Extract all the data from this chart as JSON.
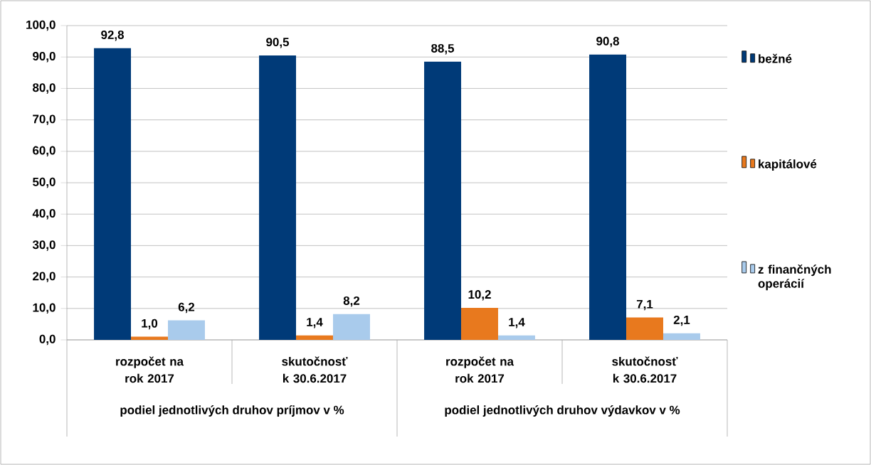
{
  "chart_data": {
    "type": "bar",
    "categories": [
      "rozpočet na rok 2017",
      "skutočnosť k 30.6.2017",
      "rozpočet na rok 2017",
      "skutočnosť k 30.6.2017"
    ],
    "series": [
      {
        "name": "bežné",
        "color": "#003a78",
        "values": [
          92.8,
          90.5,
          88.5,
          90.8
        ],
        "value_labels": [
          "92,8",
          "90,5",
          "88,5",
          "90,8"
        ]
      },
      {
        "name": "kapitálové",
        "color": "#e8791e",
        "values": [
          1.0,
          1.4,
          10.2,
          7.1
        ],
        "value_labels": [
          "1,0",
          "1,4",
          "10,2",
          "7,1"
        ]
      },
      {
        "name": "z finančných operácií",
        "color": "#a9cbec",
        "values": [
          6.2,
          8.2,
          1.4,
          2.1
        ],
        "value_labels": [
          "6,2",
          "8,2",
          "1,4",
          "2,1"
        ]
      }
    ],
    "annotations": [
      "podiel jednotlivých druhov príjmov v %",
      "podiel jednotlivých druhov výdavkov v %"
    ],
    "ylim": [
      0,
      100
    ],
    "yticks": [
      {
        "value": 0,
        "label": "0,0"
      },
      {
        "value": 10,
        "label": "10,0"
      },
      {
        "value": 20,
        "label": "20,0"
      },
      {
        "value": 30,
        "label": "30,0"
      },
      {
        "value": 40,
        "label": "40,0"
      },
      {
        "value": 50,
        "label": "50,0"
      },
      {
        "value": 60,
        "label": "60,0"
      },
      {
        "value": 70,
        "label": "70,0"
      },
      {
        "value": 80,
        "label": "80,0"
      },
      {
        "value": 90,
        "label": "90,0"
      },
      {
        "value": 100,
        "label": "100,0"
      }
    ],
    "grid": "y",
    "legend": "right"
  }
}
